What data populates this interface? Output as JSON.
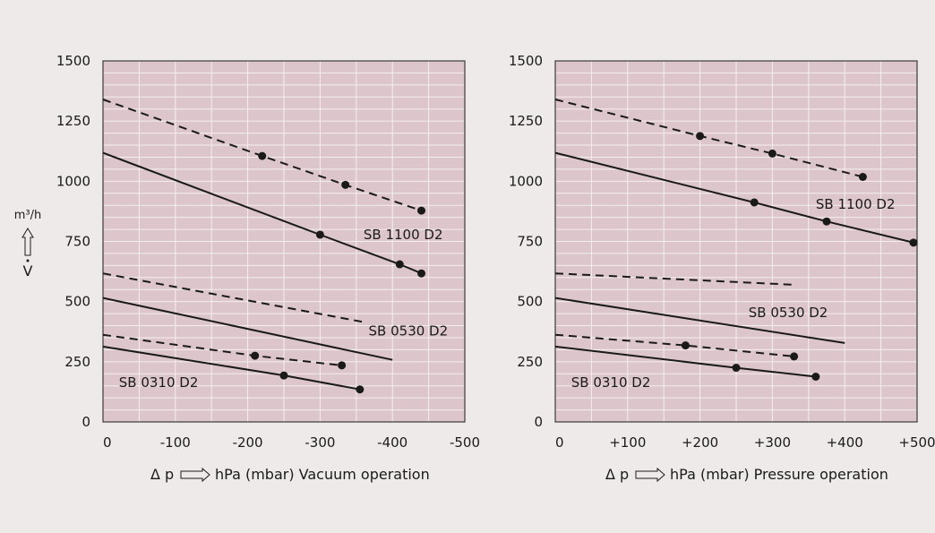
{
  "colors": {
    "background": "#efeaea",
    "plot_bg": "#dcc6cb",
    "grid": "#f4eef0",
    "ink": "#1a1a1a"
  },
  "y_unit": "m³/h",
  "y_symbol": "V",
  "chart_data": [
    {
      "type": "line",
      "xlabel": "Δ p ⇨ hPa (mbar) Vacuum operation",
      "delta": "Δ p",
      "axis_text": "hPa (mbar) Vacuum operation",
      "x_ticks": [
        "0",
        "-100",
        "-200",
        "-300",
        "-400",
        "-500"
      ],
      "y_ticks": [
        "0",
        "250",
        "500",
        "750",
        "1000",
        "1250",
        "1500"
      ],
      "xlim": [
        0,
        -500
      ],
      "ylim": [
        0,
        1500
      ],
      "grid": true,
      "labels": [
        {
          "text": "SB 1100 D2",
          "x": -360,
          "y": 760
        },
        {
          "text": "SB 0530 D2",
          "x": -367,
          "y": 360
        },
        {
          "text": "SB 0310 D2",
          "x": -22,
          "y": 145
        }
      ],
      "series": [
        {
          "style": "dashed",
          "points": [
            [
              0,
              1340
            ],
            [
              -220,
              1105
            ],
            [
              -335,
              985
            ],
            [
              -440,
              878
            ]
          ],
          "markers": [
            [
              -220,
              1105
            ],
            [
              -335,
              985
            ],
            [
              -440,
              878
            ]
          ]
        },
        {
          "style": "solid",
          "points": [
            [
              0,
              1118
            ],
            [
              -300,
              778
            ],
            [
              -410,
              655
            ],
            [
              -440,
              617
            ]
          ],
          "markers": [
            [
              -300,
              778
            ],
            [
              -410,
              655
            ],
            [
              -440,
              617
            ]
          ]
        },
        {
          "style": "dashed",
          "points": [
            [
              0,
              617
            ],
            [
              -360,
              415
            ]
          ],
          "markers": []
        },
        {
          "style": "solid",
          "points": [
            [
              0,
              515
            ],
            [
              -400,
              258
            ]
          ],
          "markers": []
        },
        {
          "style": "dashed",
          "points": [
            [
              0,
              362
            ],
            [
              -210,
              275
            ],
            [
              -330,
              235
            ]
          ],
          "markers": [
            [
              -210,
              275
            ],
            [
              -330,
              235
            ]
          ]
        },
        {
          "style": "solid",
          "points": [
            [
              0,
              313
            ],
            [
              -250,
              193
            ],
            [
              -355,
              135
            ]
          ],
          "markers": [
            [
              -250,
              193
            ],
            [
              -355,
              135
            ]
          ]
        }
      ]
    },
    {
      "type": "line",
      "xlabel": "Δ p ⇨ hPa (mbar) Pressure operation",
      "delta": "Δ p",
      "axis_text": "hPa (mbar) Pressure operation",
      "x_ticks": [
        "0",
        "+100",
        "+200",
        "+300",
        "+400",
        "+500"
      ],
      "y_ticks": [
        "0",
        "250",
        "500",
        "750",
        "1000",
        "1250",
        "1500"
      ],
      "xlim": [
        0,
        500
      ],
      "ylim": [
        0,
        1500
      ],
      "grid": true,
      "labels": [
        {
          "text": "SB 1100 D2",
          "x": 360,
          "y": 885
        },
        {
          "text": "SB 0530 D2",
          "x": 267,
          "y": 435
        },
        {
          "text": "SB 0310 D2",
          "x": 22,
          "y": 145
        }
      ],
      "series": [
        {
          "style": "dashed",
          "points": [
            [
              0,
              1340
            ],
            [
              200,
              1188
            ],
            [
              300,
              1115
            ],
            [
              425,
              1018
            ]
          ],
          "markers": [
            [
              200,
              1188
            ],
            [
              300,
              1115
            ],
            [
              425,
              1018
            ]
          ]
        },
        {
          "style": "solid",
          "points": [
            [
              0,
              1118
            ],
            [
              275,
              912
            ],
            [
              375,
              833
            ],
            [
              495,
              745
            ]
          ],
          "markers": [
            [
              275,
              912
            ],
            [
              375,
              833
            ],
            [
              495,
              745
            ]
          ]
        },
        {
          "style": "dashed",
          "points": [
            [
              0,
              617
            ],
            [
              330,
              570
            ]
          ],
          "markers": []
        },
        {
          "style": "solid",
          "points": [
            [
              0,
              515
            ],
            [
              400,
              328
            ]
          ],
          "markers": []
        },
        {
          "style": "dashed",
          "points": [
            [
              0,
              362
            ],
            [
              180,
              318
            ],
            [
              330,
              272
            ]
          ],
          "markers": [
            [
              180,
              318
            ],
            [
              330,
              272
            ]
          ]
        },
        {
          "style": "solid",
          "points": [
            [
              0,
              313
            ],
            [
              250,
              225
            ],
            [
              360,
              188
            ]
          ],
          "markers": [
            [
              250,
              225
            ],
            [
              360,
              188
            ]
          ]
        }
      ]
    }
  ]
}
